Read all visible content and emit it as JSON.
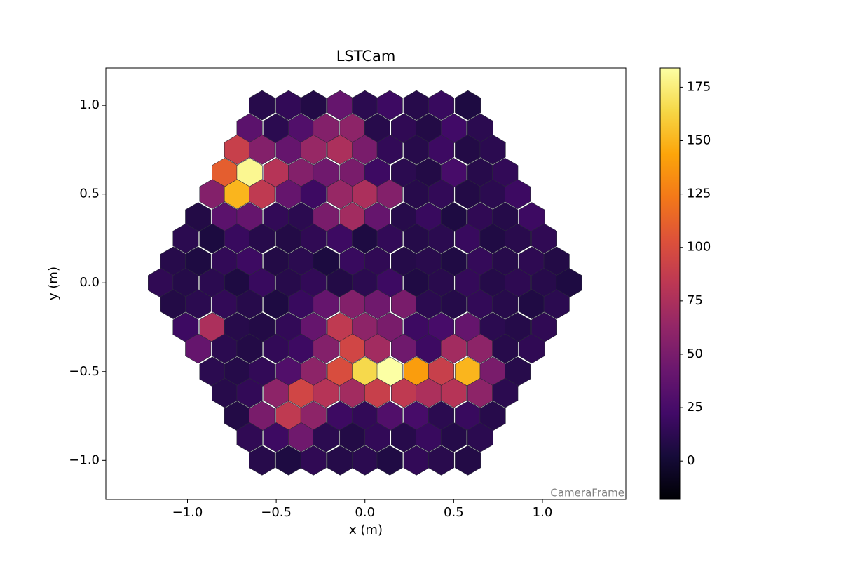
{
  "chart_data": {
    "type": "camera",
    "title": "LSTCam",
    "xlabel": "x  (m)",
    "ylabel": "y  (m)",
    "annotation": "CameraFrame",
    "xlim": [
      -1.46,
      1.47
    ],
    "ylim": [
      -1.22,
      1.21
    ],
    "xticks": [
      {
        "value": -1.0,
        "label": "−1.0"
      },
      {
        "value": -0.5,
        "label": "−0.5"
      },
      {
        "value": 0,
        "label": "0.0"
      },
      0.5,
      {
        "value": 1.0,
        "label": "1.0"
      }
    ],
    "yticks": [
      {
        "value": -1.0,
        "label": "−1.0"
      },
      {
        "value": -0.5,
        "label": "−0.5"
      },
      {
        "value": 0,
        "label": "0.0"
      },
      0.5,
      {
        "value": 1.0,
        "label": "1.0"
      }
    ],
    "colormap": "inferno",
    "colorbar": {
      "lim": [
        -18,
        184
      ],
      "ticks": [
        0,
        25,
        50,
        75,
        100,
        125,
        150,
        175
      ]
    },
    "x": [
      -0.58,
      -0.43,
      -0.29,
      -0.14,
      0,
      0.14,
      0.29,
      0.43,
      0.58,
      -0.65,
      -0.5,
      -0.36,
      -0.22,
      -0.07,
      0.07,
      0.22,
      0.36,
      0.5,
      0.65,
      -0.72,
      -0.58,
      -0.43,
      -0.29,
      -0.14,
      0,
      0.14,
      0.29,
      0.43,
      0.58,
      0.72,
      -0.79,
      -0.65,
      -0.5,
      -0.36,
      -0.22,
      -0.07,
      0.07,
      0.22,
      0.36,
      0.5,
      0.65,
      0.79,
      -0.86,
      -0.72,
      -0.58,
      -0.43,
      -0.29,
      -0.14,
      0,
      0.14,
      0.29,
      0.43,
      0.58,
      0.72,
      0.86,
      -0.94,
      -0.79,
      -0.65,
      -0.5,
      -0.36,
      -0.22,
      -0.07,
      0.07,
      0.22,
      0.36,
      0.5,
      0.65,
      0.79,
      0.94,
      -1.01,
      -0.86,
      -0.72,
      -0.58,
      -0.43,
      -0.29,
      -0.14,
      0,
      0.14,
      0.29,
      0.43,
      0.58,
      0.72,
      0.86,
      1.01,
      -1.08,
      -0.94,
      -0.79,
      -0.65,
      -0.5,
      -0.36,
      -0.22,
      -0.07,
      0.07,
      0.22,
      0.36,
      0.5,
      0.65,
      0.79,
      0.94,
      1.08,
      -1.15,
      -1.01,
      -0.86,
      -0.72,
      -0.58,
      -0.43,
      -0.29,
      -0.14,
      0,
      0.14,
      0.29,
      0.43,
      0.58,
      0.72,
      0.86,
      1.01,
      1.15,
      -1.08,
      -0.94,
      -0.79,
      -0.65,
      -0.5,
      -0.36,
      -0.22,
      -0.07,
      0.07,
      0.22,
      0.36,
      0.5,
      0.65,
      0.79,
      0.94,
      1.08,
      -1.01,
      -0.86,
      -0.72,
      -0.58,
      -0.43,
      -0.29,
      -0.14,
      0,
      0.14,
      0.29,
      0.43,
      0.58,
      0.72,
      0.86,
      1.01,
      -0.94,
      -0.79,
      -0.65,
      -0.5,
      -0.36,
      -0.22,
      -0.07,
      0.07,
      0.22,
      0.36,
      0.5,
      0.65,
      0.79,
      0.94,
      -0.86,
      -0.72,
      -0.58,
      -0.43,
      -0.29,
      -0.14,
      0,
      0.14,
      0.29,
      0.43,
      0.58,
      0.72,
      0.86,
      -0.79,
      -0.65,
      -0.5,
      -0.36,
      -0.22,
      -0.07,
      0.07,
      0.22,
      0.36,
      0.5,
      0.65,
      0.79,
      -0.72,
      -0.58,
      -0.43,
      -0.29,
      -0.14,
      0,
      0.14,
      0.29,
      0.43,
      0.58,
      0.72,
      -0.65,
      -0.5,
      -0.36,
      -0.22,
      -0.07,
      0.07,
      0.22,
      0.36,
      0.5,
      0.65,
      -0.58,
      -0.43,
      -0.29,
      -0.14,
      0,
      0.14,
      0.29,
      0.43,
      0.58
    ],
    "y": [
      1.0,
      1.0,
      1.0,
      1.0,
      1.0,
      1.0,
      1.0,
      1.0,
      1.0,
      0.87,
      0.87,
      0.87,
      0.87,
      0.87,
      0.87,
      0.87,
      0.87,
      0.87,
      0.87,
      0.75,
      0.75,
      0.75,
      0.75,
      0.75,
      0.75,
      0.75,
      0.75,
      0.75,
      0.75,
      0.75,
      0.62,
      0.62,
      0.62,
      0.62,
      0.62,
      0.62,
      0.62,
      0.62,
      0.62,
      0.62,
      0.62,
      0.62,
      0.5,
      0.5,
      0.5,
      0.5,
      0.5,
      0.5,
      0.5,
      0.5,
      0.5,
      0.5,
      0.5,
      0.5,
      0.5,
      0.37,
      0.37,
      0.37,
      0.37,
      0.37,
      0.37,
      0.37,
      0.37,
      0.37,
      0.37,
      0.37,
      0.37,
      0.37,
      0.37,
      0.25,
      0.25,
      0.25,
      0.25,
      0.25,
      0.25,
      0.25,
      0.25,
      0.25,
      0.25,
      0.25,
      0.25,
      0.25,
      0.25,
      0.25,
      0.12,
      0.12,
      0.12,
      0.12,
      0.12,
      0.12,
      0.12,
      0.12,
      0.12,
      0.12,
      0.12,
      0.12,
      0.12,
      0.12,
      0.12,
      0.12,
      0,
      0,
      0,
      0,
      0,
      0,
      0,
      0,
      0,
      0,
      0,
      0,
      0,
      0,
      0,
      0,
      0,
      -0.12,
      -0.12,
      -0.12,
      -0.12,
      -0.12,
      -0.12,
      -0.12,
      -0.12,
      -0.12,
      -0.12,
      -0.12,
      -0.12,
      -0.12,
      -0.12,
      -0.12,
      -0.12,
      -0.25,
      -0.25,
      -0.25,
      -0.25,
      -0.25,
      -0.25,
      -0.25,
      -0.25,
      -0.25,
      -0.25,
      -0.25,
      -0.25,
      -0.25,
      -0.25,
      -0.25,
      -0.37,
      -0.37,
      -0.37,
      -0.37,
      -0.37,
      -0.37,
      -0.37,
      -0.37,
      -0.37,
      -0.37,
      -0.37,
      -0.37,
      -0.37,
      -0.37,
      -0.5,
      -0.5,
      -0.5,
      -0.5,
      -0.5,
      -0.5,
      -0.5,
      -0.5,
      -0.5,
      -0.5,
      -0.5,
      -0.5,
      -0.5,
      -0.62,
      -0.62,
      -0.62,
      -0.62,
      -0.62,
      -0.62,
      -0.62,
      -0.62,
      -0.62,
      -0.62,
      -0.62,
      -0.62,
      -0.75,
      -0.75,
      -0.75,
      -0.75,
      -0.75,
      -0.75,
      -0.75,
      -0.75,
      -0.75,
      -0.75,
      -0.75,
      -0.87,
      -0.87,
      -0.87,
      -0.87,
      -0.87,
      -0.87,
      -0.87,
      -0.87,
      -0.87,
      -0.87,
      -1.0,
      -1.0,
      -1.0,
      -1.0,
      -1.0,
      -1.0,
      -1.0,
      -1.0,
      -1.0
    ],
    "values": [
      10,
      15,
      8,
      40,
      12,
      20,
      10,
      18,
      6,
      35,
      12,
      30,
      55,
      60,
      10,
      14,
      8,
      22,
      12,
      90,
      55,
      40,
      65,
      75,
      50,
      15,
      10,
      20,
      8,
      12,
      110,
      180,
      80,
      55,
      45,
      50,
      20,
      12,
      8,
      25,
      10,
      15,
      55,
      150,
      85,
      40,
      20,
      65,
      75,
      55,
      10,
      15,
      8,
      12,
      20,
      8,
      35,
      40,
      15,
      12,
      50,
      70,
      40,
      10,
      18,
      6,
      14,
      9,
      20,
      12,
      5,
      18,
      10,
      8,
      14,
      20,
      6,
      15,
      9,
      12,
      18,
      7,
      11,
      14,
      10,
      6,
      15,
      20,
      8,
      12,
      5,
      18,
      14,
      9,
      11,
      7,
      16,
      10,
      13,
      8,
      14,
      9,
      12,
      6,
      18,
      10,
      15,
      8,
      12,
      20,
      7,
      11,
      16,
      9,
      13,
      10,
      6,
      8,
      12,
      15,
      10,
      6,
      18,
      40,
      55,
      45,
      50,
      12,
      9,
      15,
      10,
      7,
      12,
      20,
      75,
      10,
      8,
      15,
      40,
      85,
      60,
      50,
      20,
      25,
      40,
      12,
      9,
      14,
      40,
      12,
      8,
      15,
      20,
      55,
      95,
      70,
      45,
      20,
      70,
      60,
      10,
      14,
      12,
      9,
      15,
      30,
      60,
      100,
      165,
      185,
      140,
      90,
      150,
      50,
      10,
      10,
      15,
      60,
      95,
      80,
      70,
      90,
      85,
      75,
      80,
      60,
      12,
      8,
      50,
      85,
      60,
      20,
      15,
      30,
      25,
      12,
      18,
      10,
      14,
      20,
      45,
      12,
      8,
      15,
      10,
      18,
      9,
      12,
      10,
      6,
      14,
      9,
      12,
      7,
      15,
      11,
      8
    ]
  }
}
